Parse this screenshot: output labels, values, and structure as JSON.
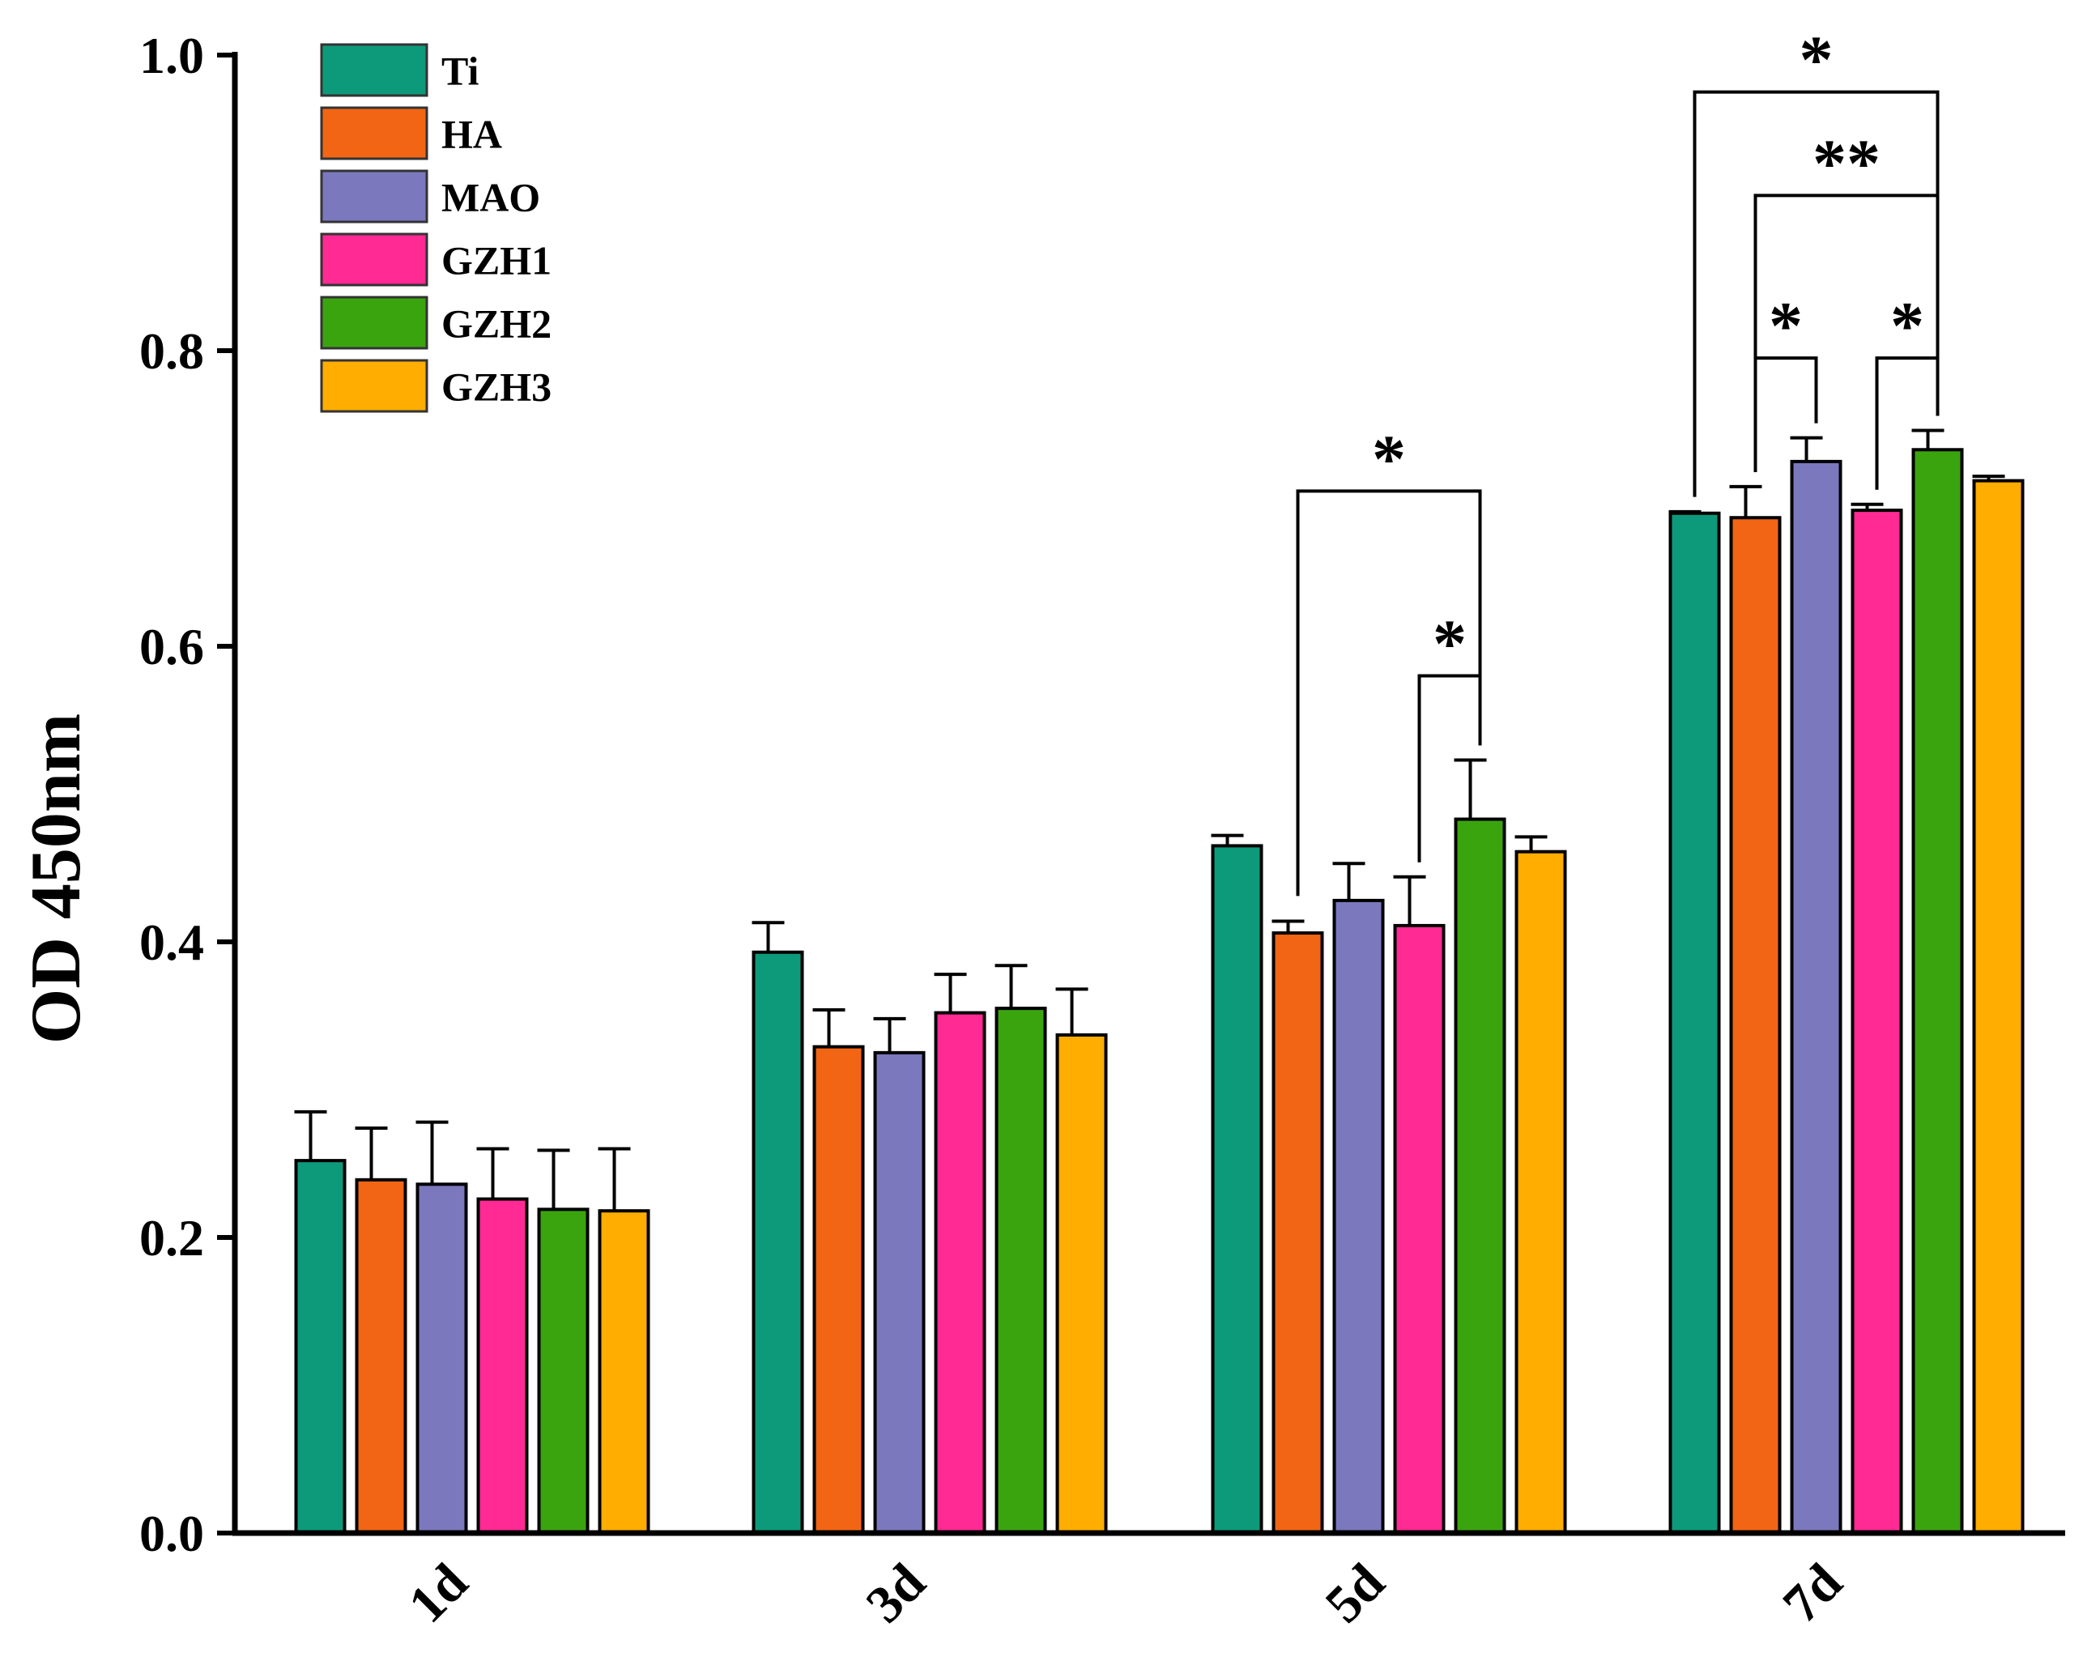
{
  "chart_data": {
    "type": "bar",
    "title": "",
    "xlabel": "",
    "ylabel": "OD 450nm",
    "ylim": [
      0,
      1.0
    ],
    "yticks": [
      "0.0",
      "0.2",
      "0.4",
      "0.6",
      "0.8",
      "1.0"
    ],
    "categories": [
      "1d",
      "3d",
      "5d",
      "7d"
    ],
    "legend_position": "top-left",
    "series": [
      {
        "name": "Ti",
        "color": "#0d9a7a",
        "values": [
          0.252,
          0.393,
          0.465,
          0.69
        ],
        "errors": [
          0.033,
          0.02,
          0.007,
          0.001
        ]
      },
      {
        "name": "HA",
        "color": "#f26514",
        "values": [
          0.239,
          0.329,
          0.406,
          0.687
        ],
        "errors": [
          0.035,
          0.025,
          0.008,
          0.021
        ]
      },
      {
        "name": "MAO",
        "color": "#7b78be",
        "values": [
          0.236,
          0.325,
          0.428,
          0.725
        ],
        "errors": [
          0.042,
          0.023,
          0.025,
          0.016
        ]
      },
      {
        "name": "GZH1",
        "color": "#ff2a93",
        "values": [
          0.226,
          0.352,
          0.411,
          0.692
        ],
        "errors": [
          0.034,
          0.026,
          0.033,
          0.004
        ]
      },
      {
        "name": "GZH2",
        "color": "#3aa40f",
        "values": [
          0.219,
          0.355,
          0.483,
          0.733
        ],
        "errors": [
          0.04,
          0.029,
          0.04,
          0.013
        ]
      },
      {
        "name": "GZH3",
        "color": "#ffad00",
        "values": [
          0.218,
          0.337,
          0.461,
          0.712
        ],
        "errors": [
          0.042,
          0.031,
          0.01,
          0.003
        ]
      }
    ],
    "significance": [
      {
        "category": "5d",
        "from_series": 1,
        "to_series": 4,
        "level": 0.705,
        "label": "*"
      },
      {
        "category": "5d",
        "from_series": 3,
        "to_series": 4,
        "level": 0.58,
        "label": "*"
      },
      {
        "category": "7d",
        "from_series": 0,
        "to_series": 4,
        "level": 0.975,
        "label": "*"
      },
      {
        "category": "7d",
        "from_series": 1,
        "to_series": 4,
        "level": 0.905,
        "label": "**"
      },
      {
        "category": "7d",
        "from_series": 1,
        "to_series": 2,
        "level": 0.795,
        "label": "*"
      },
      {
        "category": "7d",
        "from_series": 3,
        "to_series": 4,
        "level": 0.795,
        "label": "*"
      }
    ]
  }
}
